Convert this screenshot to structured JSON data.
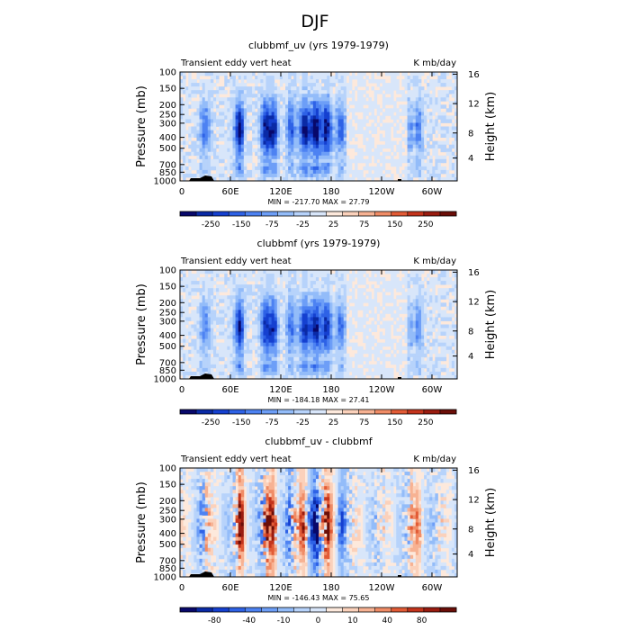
{
  "figure": {
    "title": "DJF"
  },
  "chart_data": [
    {
      "type": "heatmap",
      "title": "clubbmf_uv (yrs 1979-1979)",
      "left_label": "Transient eddy vert heat",
      "right_label": "K mb/day",
      "ylabel": "Pressure (mb)",
      "ylabel_right": "Height (km)",
      "x_ticks": [
        "0",
        "60E",
        "120E",
        "180",
        "120W",
        "60W"
      ],
      "y_ticks": [
        "100",
        "150",
        "200",
        "250",
        "300",
        "400",
        "500",
        "700",
        "850",
        "1000"
      ],
      "y2_ticks": [
        "16",
        "12",
        "8",
        "4"
      ],
      "stats": "MIN = -217.70   MAX =   27.79",
      "colorbar_labels": [
        "-250",
        "-150",
        "-75",
        "-25",
        "25",
        "75",
        "150",
        "250"
      ],
      "colorbar_colors": [
        "#08086b",
        "#0a2aa6",
        "#1540d0",
        "#2e62e6",
        "#4d82f2",
        "#6d9ef7",
        "#93bcf9",
        "#b7d3fb",
        "#d8e6fa",
        "#fde9dc",
        "#fbd1bb",
        "#f7b293",
        "#f08c66",
        "#e25b36",
        "#c4341c",
        "#9a1c10",
        "#6b0e08"
      ],
      "min": -217.7,
      "max": 27.79
    },
    {
      "type": "heatmap",
      "title": "clubbmf (yrs 1979-1979)",
      "left_label": "Transient eddy vert heat",
      "right_label": "K mb/day",
      "ylabel": "Pressure (mb)",
      "ylabel_right": "Height (km)",
      "x_ticks": [
        "0",
        "60E",
        "120E",
        "180",
        "120W",
        "60W"
      ],
      "y_ticks": [
        "100",
        "150",
        "200",
        "250",
        "300",
        "400",
        "500",
        "700",
        "850",
        "1000"
      ],
      "y2_ticks": [
        "16",
        "12",
        "8",
        "4"
      ],
      "stats": "MIN = -184.18   MAX =   27.41",
      "colorbar_labels": [
        "-250",
        "-150",
        "-75",
        "-25",
        "25",
        "75",
        "150",
        "250"
      ],
      "colorbar_colors": [
        "#08086b",
        "#0a2aa6",
        "#1540d0",
        "#2e62e6",
        "#4d82f2",
        "#6d9ef7",
        "#93bcf9",
        "#b7d3fb",
        "#d8e6fa",
        "#fde9dc",
        "#fbd1bb",
        "#f7b293",
        "#f08c66",
        "#e25b36",
        "#c4341c",
        "#9a1c10",
        "#6b0e08"
      ],
      "min": -184.18,
      "max": 27.41
    },
    {
      "type": "heatmap",
      "title": "clubbmf_uv - clubbmf",
      "left_label": "Transient eddy vert heat",
      "right_label": "K mb/day",
      "ylabel": "Pressure (mb)",
      "ylabel_right": "Height (km)",
      "x_ticks": [
        "0",
        "60E",
        "120E",
        "180",
        "120W",
        "60W"
      ],
      "y_ticks": [
        "100",
        "150",
        "200",
        "250",
        "300",
        "400",
        "500",
        "700",
        "850",
        "1000"
      ],
      "y2_ticks": [
        "16",
        "12",
        "8",
        "4"
      ],
      "stats": "MIN = -146.43   MAX =   75.65",
      "colorbar_labels": [
        "-80",
        "-40",
        "-10",
        "0",
        "10",
        "40",
        "80"
      ],
      "colorbar_colors": [
        "#08086b",
        "#0a2aa6",
        "#1540d0",
        "#2e62e6",
        "#4d82f2",
        "#6d9ef7",
        "#93bcf9",
        "#b7d3fb",
        "#d8e6fa",
        "#fde9dc",
        "#fbd1bb",
        "#f7b293",
        "#f08c66",
        "#e25b36",
        "#c4341c",
        "#9a1c10",
        "#6b0e08"
      ],
      "min": -146.43,
      "max": 75.65
    }
  ]
}
